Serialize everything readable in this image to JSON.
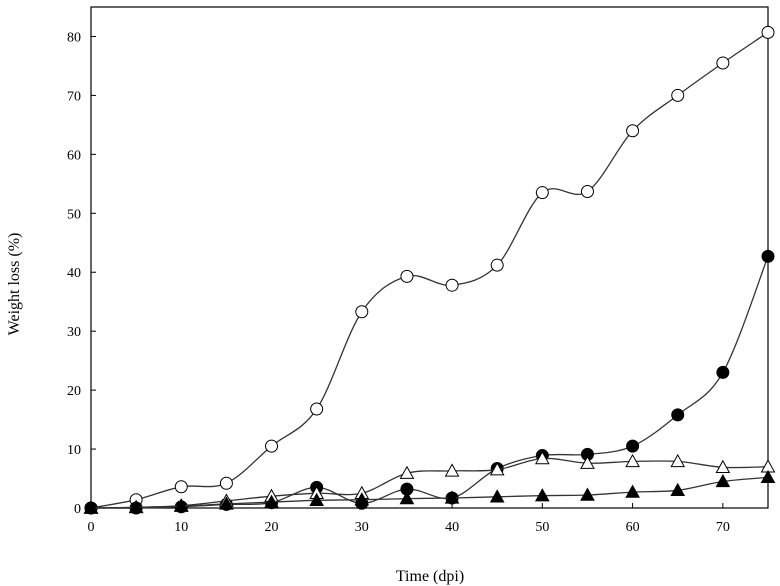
{
  "chart_data": {
    "type": "line",
    "title": "",
    "xlabel": "Time (dpi)",
    "ylabel": "Weight loss (%)",
    "xlim": [
      0,
      75
    ],
    "ylim": [
      0,
      85
    ],
    "x_ticks": [
      0,
      10,
      20,
      30,
      40,
      50,
      60,
      70
    ],
    "y_ticks": [
      0,
      10,
      20,
      30,
      40,
      50,
      60,
      70,
      80
    ],
    "grid": false,
    "legend": "none",
    "x": [
      0,
      5,
      10,
      15,
      20,
      25,
      30,
      35,
      40,
      45,
      50,
      55,
      60,
      65,
      70,
      75
    ],
    "series": [
      {
        "marker": "circle-open",
        "values": [
          0,
          1.4,
          3.6,
          4.2,
          10.5,
          16.8,
          33.3,
          39.3,
          37.8,
          41.2,
          53.5,
          53.7,
          64.0,
          70.0,
          75.5,
          80.7
        ]
      },
      {
        "marker": "circle-filled",
        "values": [
          0,
          0,
          0.2,
          0.6,
          0.9,
          3.5,
          0.8,
          3.2,
          1.7,
          6.7,
          8.9,
          9.1,
          10.5,
          15.8,
          23.0,
          42.7
        ]
      },
      {
        "marker": "triangle-open",
        "values": [
          0,
          0.1,
          0.4,
          1.2,
          2.0,
          2.5,
          2.5,
          5.9,
          6.3,
          6.5,
          8.4,
          7.6,
          7.9,
          7.9,
          6.9,
          7.0
        ]
      },
      {
        "marker": "triangle-filled",
        "values": [
          0,
          0.1,
          0.3,
          0.7,
          1.0,
          1.3,
          1.4,
          1.6,
          1.7,
          1.9,
          2.1,
          2.2,
          2.7,
          3.0,
          4.5,
          5.2
        ]
      }
    ]
  }
}
